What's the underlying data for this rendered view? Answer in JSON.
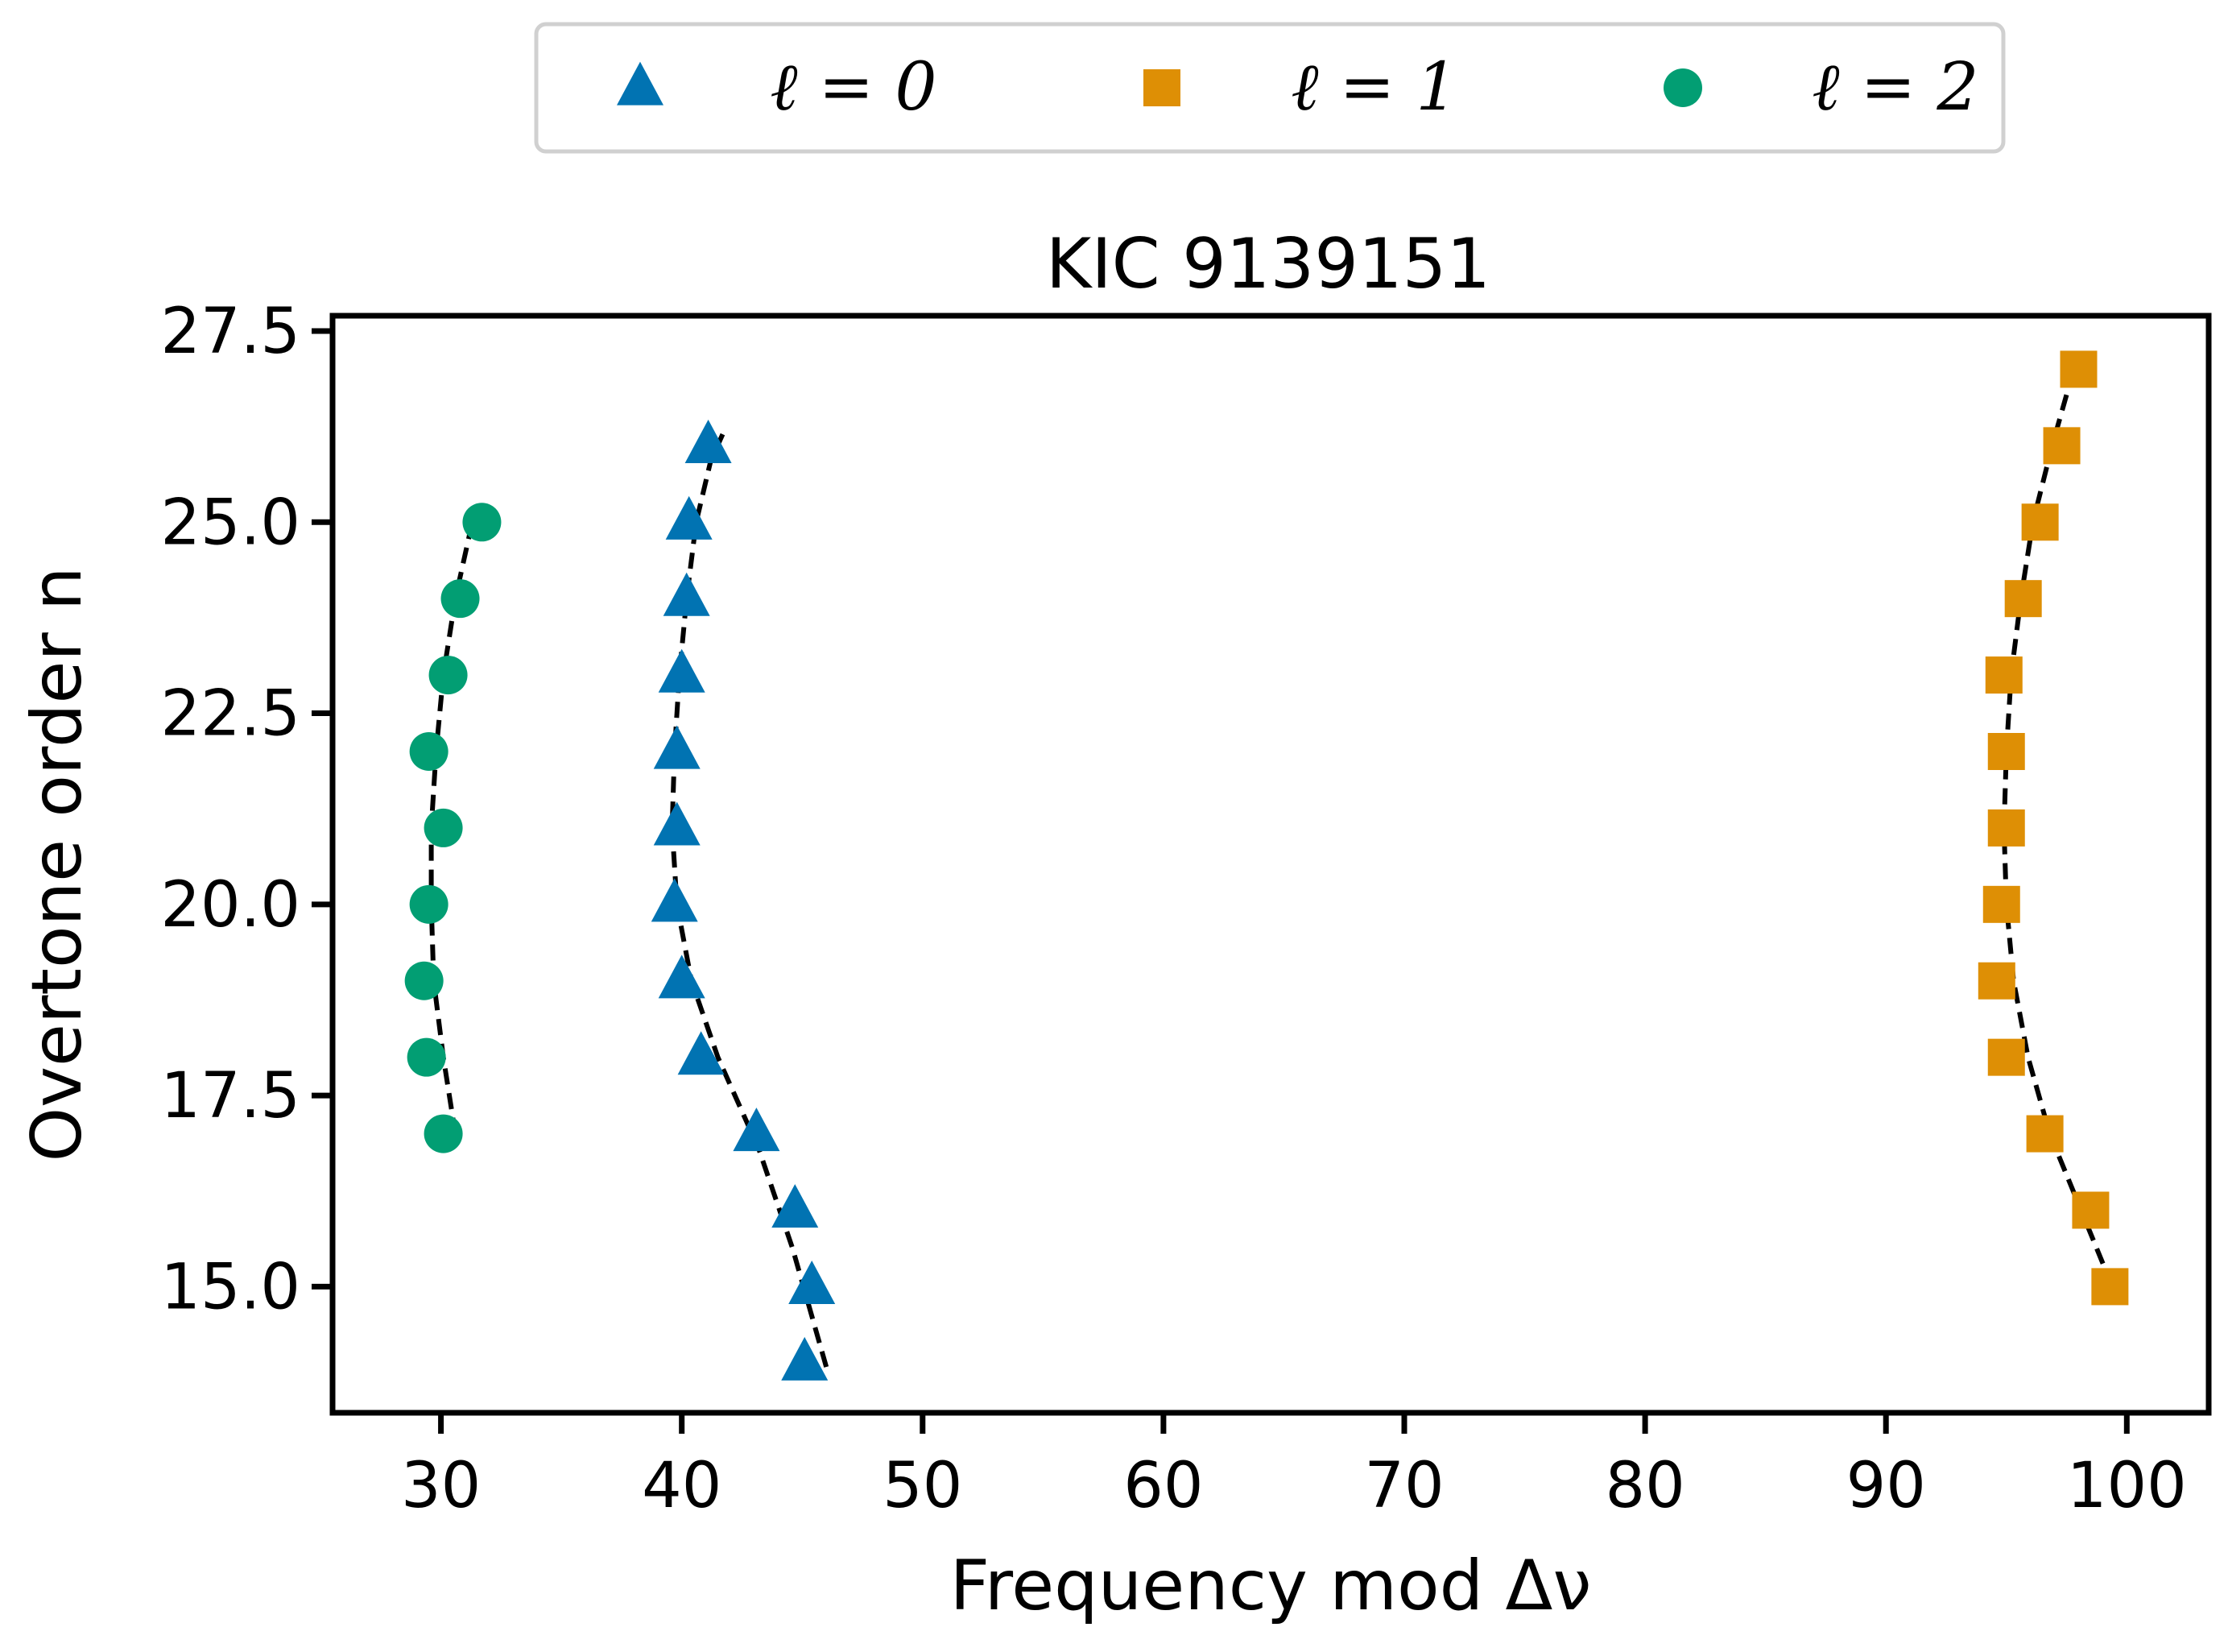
{
  "chart_data": {
    "type": "scatter",
    "title": "KIC 9139151",
    "xlabel": "Frequency mod Δν",
    "ylabel": "Overtone order n",
    "xlim": [
      25.5,
      103.4
    ],
    "ylim": [
      13.35,
      27.7
    ],
    "xticks": [
      30,
      40,
      50,
      60,
      70,
      80,
      90,
      100
    ],
    "yticks": [
      15.0,
      17.5,
      20.0,
      22.5,
      25.0,
      27.5
    ],
    "xtick_labels": [
      "30",
      "40",
      "50",
      "60",
      "70",
      "80",
      "90",
      "100"
    ],
    "ytick_labels": [
      "15.0",
      "17.5",
      "20.0",
      "22.5",
      "25.0",
      "27.5"
    ],
    "grid": false,
    "legend_position": "top-center, outside plot",
    "series": [
      {
        "name": "ℓ = 0",
        "marker": "triangle",
        "color": "#0173b2",
        "points": [
          {
            "x": 45.1,
            "y": 14
          },
          {
            "x": 45.4,
            "y": 15
          },
          {
            "x": 44.7,
            "y": 16
          },
          {
            "x": 43.1,
            "y": 17
          },
          {
            "x": 40.8,
            "y": 18
          },
          {
            "x": 40.0,
            "y": 19
          },
          {
            "x": 39.7,
            "y": 20
          },
          {
            "x": 39.8,
            "y": 21
          },
          {
            "x": 39.8,
            "y": 22
          },
          {
            "x": 40.0,
            "y": 23
          },
          {
            "x": 40.2,
            "y": 24
          },
          {
            "x": 40.3,
            "y": 25
          },
          {
            "x": 41.1,
            "y": 26
          }
        ],
        "fit": [
          {
            "x": 46.0,
            "y": 13.95
          },
          {
            "x": 44.6,
            "y": 15.5
          },
          {
            "x": 43.2,
            "y": 16.8
          },
          {
            "x": 41.5,
            "y": 18.0
          },
          {
            "x": 40.4,
            "y": 19.0
          },
          {
            "x": 39.8,
            "y": 20.0
          },
          {
            "x": 39.6,
            "y": 21.0
          },
          {
            "x": 39.7,
            "y": 22.0
          },
          {
            "x": 39.9,
            "y": 23.0
          },
          {
            "x": 40.2,
            "y": 24.0
          },
          {
            "x": 40.6,
            "y": 25.0
          },
          {
            "x": 41.2,
            "y": 25.8
          },
          {
            "x": 41.7,
            "y": 26.15
          }
        ]
      },
      {
        "name": "ℓ = 1",
        "marker": "square",
        "color": "#de8f05",
        "points": [
          {
            "x": 99.3,
            "y": 15
          },
          {
            "x": 98.5,
            "y": 16
          },
          {
            "x": 96.6,
            "y": 17
          },
          {
            "x": 95.0,
            "y": 18
          },
          {
            "x": 94.6,
            "y": 19
          },
          {
            "x": 94.8,
            "y": 20
          },
          {
            "x": 95.0,
            "y": 21
          },
          {
            "x": 95.0,
            "y": 22
          },
          {
            "x": 94.9,
            "y": 23
          },
          {
            "x": 95.7,
            "y": 24
          },
          {
            "x": 96.4,
            "y": 25
          },
          {
            "x": 97.3,
            "y": 26
          },
          {
            "x": 98.0,
            "y": 27
          }
        ],
        "fit": [
          {
            "x": 99.4,
            "y": 15.0
          },
          {
            "x": 98.1,
            "y": 16.0
          },
          {
            "x": 96.8,
            "y": 17.0
          },
          {
            "x": 95.9,
            "y": 18.0
          },
          {
            "x": 95.3,
            "y": 19.0
          },
          {
            "x": 95.0,
            "y": 20.0
          },
          {
            "x": 94.9,
            "y": 21.0
          },
          {
            "x": 95.0,
            "y": 22.0
          },
          {
            "x": 95.2,
            "y": 23.0
          },
          {
            "x": 95.6,
            "y": 24.0
          },
          {
            "x": 96.1,
            "y": 25.0
          },
          {
            "x": 96.9,
            "y": 26.0
          },
          {
            "x": 97.8,
            "y": 27.0
          }
        ]
      },
      {
        "name": "ℓ = 2",
        "marker": "circle",
        "color": "#029e73",
        "points": [
          {
            "x": 30.1,
            "y": 17
          },
          {
            "x": 29.4,
            "y": 18
          },
          {
            "x": 29.3,
            "y": 19
          },
          {
            "x": 29.5,
            "y": 20
          },
          {
            "x": 30.1,
            "y": 21
          },
          {
            "x": 29.5,
            "y": 22
          },
          {
            "x": 30.3,
            "y": 23
          },
          {
            "x": 30.8,
            "y": 24
          },
          {
            "x": 31.7,
            "y": 25
          }
        ],
        "fit": [
          {
            "x": 30.6,
            "y": 17.0
          },
          {
            "x": 30.1,
            "y": 18.0
          },
          {
            "x": 29.7,
            "y": 19.0
          },
          {
            "x": 29.6,
            "y": 20.0
          },
          {
            "x": 29.6,
            "y": 21.0
          },
          {
            "x": 29.8,
            "y": 22.0
          },
          {
            "x": 30.1,
            "y": 23.0
          },
          {
            "x": 30.6,
            "y": 24.0
          },
          {
            "x": 31.3,
            "y": 25.0
          }
        ]
      }
    ]
  }
}
